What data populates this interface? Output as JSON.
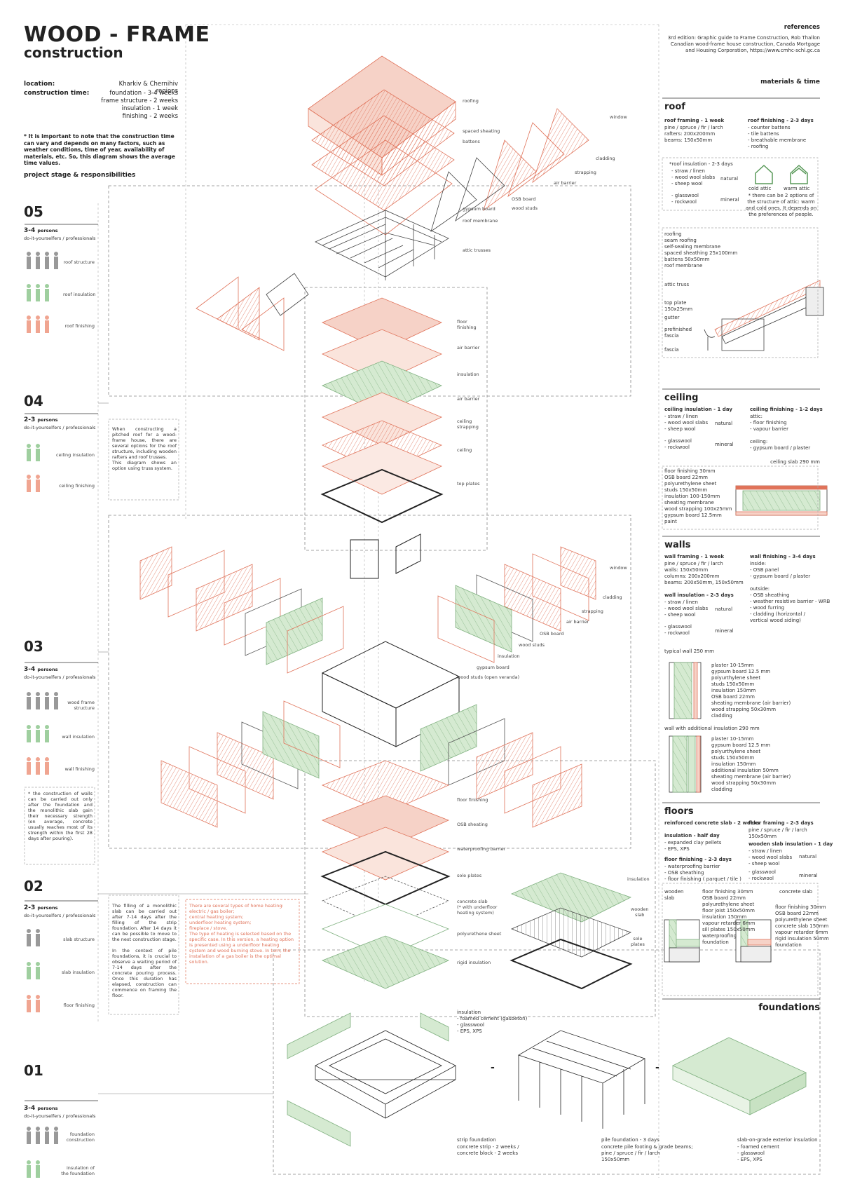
{
  "header": {
    "title": "WOOD - FRAME",
    "subtitle": "construction",
    "location_label": "location:",
    "location_value": "Kharkiv & Chernihiv regions",
    "time_label": "construction time:",
    "time_values": "foundation - 3-4 weeks\nframe structure - 2 weeks\ninsulation - 1 week\nfinishing - 2 weeks",
    "note": "* It is important to note that the construction time can vary and depends on many factors, such as weather conditions, time of year, availability of materials, etc. So, this diagram shows the average time values.",
    "stage_heading": "project stage &  responsibilities"
  },
  "references": {
    "title": "references",
    "text": "3rd edition: Graphic guide to Frame Construction, Rob Thallon\nCanadian wood-frame house construction, Canada Mortgage\nand Housing Corporation, https://www.cmhc-schl.gc.ca"
  },
  "materials_time": "materials & time",
  "stages": [
    {
      "num": "05",
      "persons": "3-4",
      "persons_unit": "persons",
      "who": "do-it-yourselfers / professionals",
      "tasks": [
        "roof structure",
        "roof insulation",
        "roof finishing"
      ]
    },
    {
      "num": "04",
      "persons": "2-3",
      "persons_unit": "persons",
      "who": "do-it-yourselfers / professionals",
      "tasks": [
        "ceiling insulation",
        "ceiling finishing"
      ]
    },
    {
      "num": "03",
      "persons": "3-4",
      "persons_unit": "persons",
      "who": "do-it-yourselfers / professionals",
      "tasks": [
        "wood frame\nstructure",
        "wall insulation",
        "wall finishing"
      ]
    },
    {
      "num": "02",
      "persons": "2-3",
      "persons_unit": "persons",
      "who": "do-it-yourselfers / professionals",
      "tasks": [
        "slab structure",
        "slab insulation",
        "floor finishing"
      ]
    },
    {
      "num": "01",
      "persons": "3-4",
      "persons_unit": "persons",
      "who": "do-it-yourselfers / professionals",
      "tasks": [
        "foundation\nconstruction",
        "insulation of\nthe foundation"
      ]
    }
  ],
  "notes": {
    "stage04": "When constructing a pitched roof for a wood-frame house, there are several options for the roof structure, including wooden rafters and roof trusses.\nThis diagram shows an option using truss system.",
    "stage03": "* the construction of walls can be carried out only after the foundation and the monolithic slab gain their necessary strength (on average, concrete usually reaches most of its strength within the first 28 days after pouring).",
    "stage02": "The filling of a monolithic slab can be carried out after 7-14 days after the filling of the strip foundation. After 14 days it can be possible to move to the next construction stage.\n\nIn the context of pile foundations, it is crucial to observe a waiting period of 7-14 days after the concrete pouring process. Once this duration has elapsed, construction can commence on framing the floor.",
    "heating": "There are several types of home heating:\n   electric / gas boiler;\n   central heating system;\n   underfloor heating system;\n   fireplace / stove.\nThe type of heating is selected based on the specific case. In this version, a heating option is presented using a underfloor heating system and wood burning stove. In turn, the installation of a gas boiler is the optimal solution."
  },
  "diagram_labels": {
    "roof": [
      "roofing",
      "spaced sheating",
      "battens",
      "window",
      "cladding",
      "strapping",
      "air barrier",
      "gypsum board",
      "OSB board",
      "wood studs",
      "roof membrane",
      "attic trusses"
    ],
    "ceiling": [
      "floor\nfinishing",
      "air barrier",
      "insulation",
      "air barrier",
      "ceiling\nstrapping",
      "ceiling",
      "top plates"
    ],
    "walls": [
      "window",
      "cladding",
      "strapping",
      "air barrier",
      "OSB board",
      "wood studs",
      "insulation",
      "gypsum board",
      "wood studs (open veranda)"
    ],
    "floor": [
      "floor finishing",
      "OSB sheating",
      "waterproofing barrier",
      "sole plates",
      "concrete slab\n(* with underfloor\nheating system)",
      "polyurethene sheet",
      "rigid insulation",
      "insulation",
      "wooden\nslab",
      "sole\nplates"
    ]
  },
  "roof_panel": {
    "heading": "roof",
    "framing_title": "roof framing - 1 week",
    "framing_text": "pine / spruce / fir / larch\nrafters: 200x200mm\nbeams: 150x50mm",
    "finishing_title": "roof finishing - 2-3 days",
    "finishing_text": "- counter battens\n- tile battens\n- breathable membrane\n- roofing",
    "insulation_title": "*roof insulation - 2-3 days",
    "insulation_natural": "- straw / linen\n- wood wool slabs\n- sheep wool",
    "insulation_mineral": "- glasswool\n- rockwool",
    "natural": "natural",
    "mineral": "mineral",
    "cold_attic": "cold attic",
    "warm_attic": "warm attic",
    "attic_note": "* there can be 2 options of the structure of attic: warm and cold ones. It depends on the preferences of people.",
    "detail_labels": "roofing\nseam roofing\nself-sealing membrane\nspaced sheathing 25x100mm\nbattens 50x50mm\nroof membrane",
    "detail_side": [
      "attic truss",
      "top plate\n150x25mm",
      "gutter",
      "prefinished\nfascia",
      "fascia"
    ]
  },
  "ceiling_panel": {
    "heading": "ceiling",
    "insulation_title": "ceiling insulation - 1 day",
    "insulation_natural": "- straw / linen\n- wood wool slabs\n- sheep wool",
    "insulation_mineral": "- glasswool\n- rockwool",
    "natural": "natural",
    "mineral": "mineral",
    "finishing_title": "ceiling finishing - 1-2 days",
    "finishing_text": "attic:\n- floor finishing\n- vapour barrier\n\nceiling:\n- gypsum board / plaster",
    "slab_title": "ceiling slab 290 mm",
    "slab_layers": "floor finishing 30mm\nOSB board 22mm\npolyurethylene sheet\nstuds 150x50mm\ninsulation 100-150mm\nsheating membrane\nwood strapping 100x25mm\ngypsum board 12.5mm\npaint"
  },
  "walls_panel": {
    "heading": "walls",
    "framing_title": "wall framing - 1 week",
    "framing_text": "pine / spruce / fir / larch\nwalls: 150x50mm\ncolumns: 200x200mm\nbeams: 200x50mm, 150x50mm",
    "finishing_title": "wall finishing - 3-4 days",
    "finishing_text": "inside:\n- OSB panel\n- gypsum board / plaster\n\noutside:\n- OSB sheathing\n- weather resistive barrier - WRB\n- wood furring\n- cladding (horizontal /\n  vertical wood siding)",
    "insulation_title": "wall insulation - 2-3 days",
    "insulation_natural": "- straw / linen\n- wood wool slabs\n- sheep wool",
    "insulation_mineral": "- glasswool\n- rockwool",
    "natural": "natural",
    "mineral": "mineral",
    "typical_title": "typical wall 250 mm",
    "typical_layers": "plaster 10-15mm\ngypsum board 12.5 mm\npolyurthylene sheet\nstuds 150x50mm\ninsulation 150mm\nOSB board 22mm\nsheating membrane (air barrier)\nwood strapping 50x30mm\ncladding",
    "additional_title": "wall with additional insulation 290 mm",
    "additional_layers": "plaster 10-15mm\ngypsum board 12.5 mm\npolyurthylene sheet\nstuds 150x50mm\ninsulation 150mm\nadditional insulation 50mm\nsheating membrane (air barrier)\nwood strapping 50x30mm\ncladding"
  },
  "floors_panel": {
    "heading": "floors",
    "slab_title": "reinforced concrete slab - 2 weeks",
    "insulation_title": "insulation - half day",
    "insulation_text": "- expanded clay pellets\n- EPS, XPS",
    "finishing_title": "floor finishing - 2-3 days",
    "finishing_text": "- waterproofing barrier\n- OSB sheathing\n- floor finishing ( parquet / tile )",
    "framing_title": "floor framing - 2-3 days",
    "framing_text": "pine / spruce / fir / larch\n150x50mm",
    "wooden_ins_title": "wooden slab insulation - 1 day",
    "wooden_natural": "- straw / linen\n- wood wool slabs\n- sheep wool",
    "wooden_mineral": "- glasswool\n- rockwool",
    "natural": "natural",
    "mineral": "mineral",
    "wooden_slab": "wooden\nslab",
    "concrete_slab": "concrete slab",
    "wooden_layers": "floor finishing 30mm\nOSB board 22mm\npolyurethylene sheet\nfloor joist 150x50mm\ninsulation 150mm\nvapour retarder 6mm\nsill plates 150x50mm\nwaterproofing\nfoundation",
    "concrete_layers": "floor finishing 30mm\nOSB board 22mm\npolyurethylene sheet\nconcrete slab 150mm\nvapour retarder 6mm\nrigid insulation 50mm\nfoundation"
  },
  "foundations_panel": {
    "heading": "foundations",
    "insulation_text": "insulation\n- foamed cement (gasbeton)\n- glasswool\n- EPS, XPS",
    "strip_title": "strip foundation",
    "strip_text": "concrete strip - 2 weeks /\nconcrete block - 2 weeks",
    "pile_title": "pile foundation - 3 days",
    "pile_text": "concrete pile footing & grade beams;\npine / spruce / fir / larch\n150x50mm",
    "slab_title": "slab-on-grade exterior insulation",
    "slab_text": "- foamed cement\n- glasswool\n- EPS, XPS",
    "dash": "-"
  },
  "colors": {
    "orange": "#e0735a",
    "orange_fill": "#f6d2c7",
    "green": "#9fcf9f",
    "green_fill": "#d5ead1",
    "grey": "#999999",
    "dark": "#333333"
  }
}
